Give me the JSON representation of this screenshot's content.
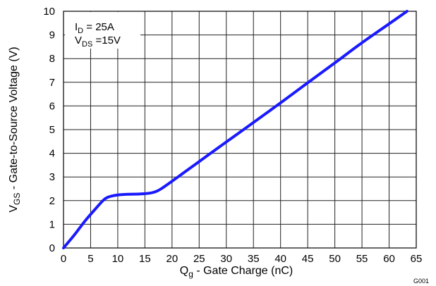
{
  "chart_data": {
    "type": "line",
    "x_axis": {
      "label_main": "Q",
      "label_sub": "g",
      "label_rest": " - Gate Charge  (nC)",
      "range": [
        0,
        65
      ],
      "ticks": [
        0,
        5,
        10,
        15,
        20,
        25,
        30,
        35,
        40,
        45,
        50,
        55,
        60,
        65
      ]
    },
    "y_axis": {
      "label_main": "V",
      "label_sub": "GS",
      "label_rest": " - Gate-to-Source Voltage (V)",
      "range": [
        0,
        10
      ],
      "ticks": [
        0,
        1,
        2,
        3,
        4,
        5,
        6,
        7,
        8,
        9,
        10
      ]
    },
    "grid": true,
    "legend": {
      "placement": "top-left",
      "lines": [
        {
          "main": "I",
          "sub": "D",
          "rest": " = 25A"
        },
        {
          "main": "V",
          "sub": "DS",
          "rest": " =15V"
        }
      ]
    },
    "series": [
      {
        "color": "#1a1aff",
        "x": [
          0,
          2,
          4,
          6,
          7.5,
          8.5,
          10,
          12,
          14,
          16,
          17,
          18,
          20,
          25,
          30,
          35,
          40,
          45,
          50,
          55,
          60,
          63.3
        ],
        "y": [
          0,
          0.55,
          1.15,
          1.68,
          2.05,
          2.17,
          2.24,
          2.27,
          2.28,
          2.32,
          2.38,
          2.5,
          2.82,
          3.65,
          4.48,
          5.3,
          6.13,
          6.98,
          7.82,
          8.67,
          9.47,
          10
        ]
      }
    ],
    "figure_id": "G001"
  }
}
